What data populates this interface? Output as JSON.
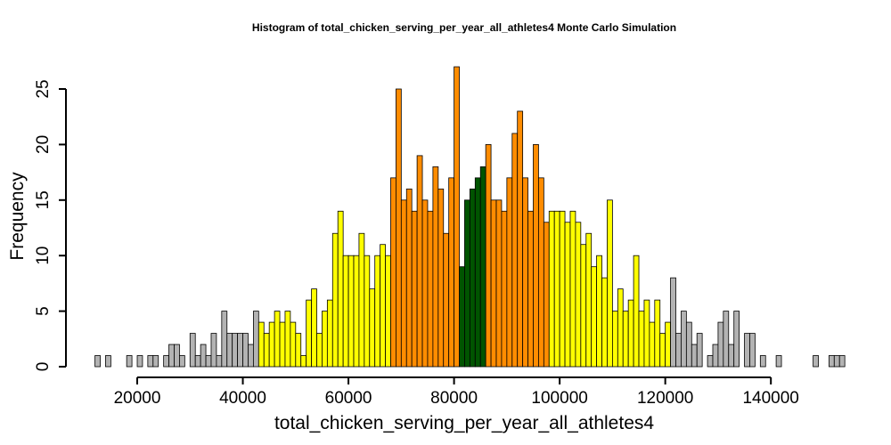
{
  "chart_data": {
    "type": "bar",
    "title": "Histogram of  total_chicken_serving_per_year_all_athletes4  Monte Carlo Simulation",
    "xlabel": "total_chicken_serving_per_year_all_athletes4",
    "ylabel": "Frequency",
    "xlim": [
      12000,
      152000
    ],
    "ylim": [
      0,
      25
    ],
    "x_ticks": [
      20000,
      40000,
      60000,
      80000,
      100000,
      120000,
      140000
    ],
    "y_ticks": [
      0,
      5,
      10,
      15,
      20,
      25
    ],
    "bin_start": 12000,
    "bin_width": 1000,
    "frequencies": [
      1,
      0,
      1,
      0,
      0,
      0,
      1,
      0,
      1,
      0,
      1,
      1,
      0,
      1,
      2,
      2,
      1,
      0,
      3,
      1,
      2,
      1,
      3,
      1,
      5,
      3,
      3,
      3,
      3,
      2,
      5,
      4,
      3,
      4,
      5,
      4,
      5,
      4,
      3,
      1,
      6,
      7,
      3,
      5,
      6,
      12,
      14,
      10,
      10,
      10,
      12,
      10,
      7,
      10,
      11,
      10,
      17,
      25,
      15,
      16,
      14,
      19,
      15,
      14,
      18,
      16,
      12,
      17,
      27,
      9,
      15,
      16,
      17,
      18,
      20,
      15,
      15,
      14,
      17,
      21,
      23,
      17,
      14,
      20,
      17,
      13,
      14,
      14,
      14,
      13,
      14,
      13,
      11,
      12,
      9,
      10,
      8,
      15,
      5,
      7,
      5,
      6,
      10,
      5,
      6,
      4,
      6,
      3,
      4,
      8,
      3,
      5,
      4,
      2,
      3,
      0,
      1,
      2,
      4,
      5,
      2,
      5,
      0,
      3,
      3,
      0,
      1,
      0,
      0,
      1,
      0,
      0,
      0,
      0,
      0,
      0,
      1,
      0,
      0,
      1,
      1,
      1
    ],
    "color_bands": [
      {
        "from": 12000,
        "to": 43000,
        "color": "#b3b3b3"
      },
      {
        "from": 43000,
        "to": 68000,
        "color": "#ffff00"
      },
      {
        "from": 68000,
        "to": 81000,
        "color": "#ff8c00"
      },
      {
        "from": 81000,
        "to": 86000,
        "color": "#005400"
      },
      {
        "from": 86000,
        "to": 98000,
        "color": "#ff8c00"
      },
      {
        "from": 98000,
        "to": 121000,
        "color": "#ffff00"
      },
      {
        "from": 121000,
        "to": 152000,
        "color": "#b3b3b3"
      }
    ]
  }
}
